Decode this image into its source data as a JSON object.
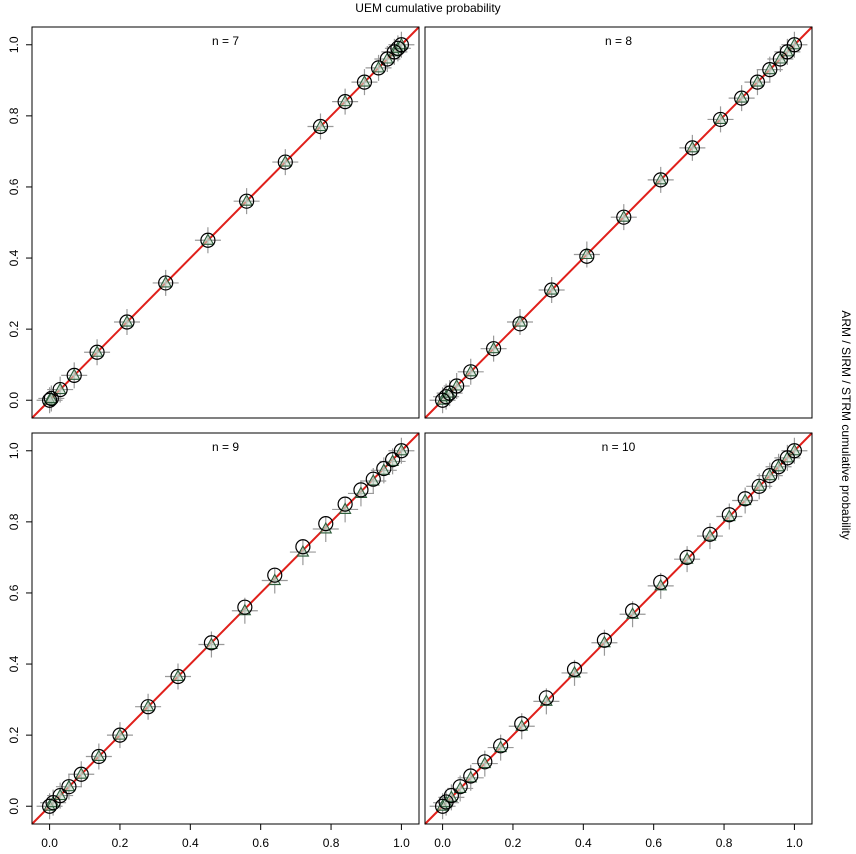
{
  "figure": {
    "xlabel": "UEM cumulative probability",
    "ylabel": "ARM / SIRM / STRM cumulative probability"
  },
  "chart_data": [
    {
      "type": "scatter",
      "title": "n = 7",
      "diagonal": true,
      "diagonal_color": "#e0201b",
      "x": [
        0,
        0.005,
        0.03,
        0.07,
        0.135,
        0.22,
        0.33,
        0.45,
        0.56,
        0.67,
        0.77,
        0.84,
        0.895,
        0.935,
        0.96,
        0.98,
        0.99,
        1
      ],
      "series": [
        {
          "marker": "cross",
          "color": "#9a9a9a",
          "values": [
            0,
            0.005,
            0.03,
            0.07,
            0.135,
            0.22,
            0.33,
            0.45,
            0.56,
            0.67,
            0.77,
            0.84,
            0.895,
            0.935,
            0.96,
            0.98,
            0.99,
            1
          ]
        },
        {
          "marker": "triangle",
          "color": "#2f5e3c",
          "values": [
            0,
            0.005,
            0.03,
            0.07,
            0.135,
            0.22,
            0.33,
            0.45,
            0.56,
            0.67,
            0.77,
            0.84,
            0.895,
            0.935,
            0.96,
            0.98,
            0.99,
            1
          ]
        },
        {
          "marker": "circle",
          "color": "#000000",
          "values": [
            0,
            0.005,
            0.03,
            0.07,
            0.135,
            0.22,
            0.33,
            0.45,
            0.56,
            0.67,
            0.77,
            0.84,
            0.895,
            0.935,
            0.96,
            0.98,
            0.99,
            1
          ]
        }
      ],
      "xlim": [
        -0.05,
        1.05
      ],
      "ylim": [
        -0.05,
        1.05
      ],
      "yticks": [
        {
          "value": 0,
          "label": "0.0"
        },
        {
          "value": 0.2,
          "label": "0.2"
        },
        {
          "value": 0.4,
          "label": "0.4"
        },
        {
          "value": 0.6,
          "label": "0.6"
        },
        {
          "value": 0.8,
          "label": "0.8"
        },
        {
          "value": 1,
          "label": "1.0"
        }
      ]
    },
    {
      "type": "scatter",
      "title": "n = 8",
      "diagonal": true,
      "diagonal_color": "#e0201b",
      "x": [
        0,
        0.01,
        0.02,
        0.04,
        0.08,
        0.145,
        0.22,
        0.31,
        0.41,
        0.515,
        0.62,
        0.71,
        0.79,
        0.85,
        0.895,
        0.93,
        0.96,
        0.98,
        1
      ],
      "series": [
        {
          "marker": "cross",
          "color": "#9a9a9a",
          "values": [
            0,
            0.01,
            0.02,
            0.04,
            0.08,
            0.145,
            0.22,
            0.31,
            0.41,
            0.515,
            0.62,
            0.71,
            0.79,
            0.85,
            0.895,
            0.93,
            0.96,
            0.98,
            1
          ]
        },
        {
          "marker": "triangle",
          "color": "#2f5e3c",
          "values": [
            0,
            0.01,
            0.02,
            0.04,
            0.08,
            0.145,
            0.22,
            0.31,
            0.41,
            0.515,
            0.62,
            0.71,
            0.79,
            0.85,
            0.895,
            0.93,
            0.96,
            0.98,
            1
          ]
        },
        {
          "marker": "circle",
          "color": "#000000",
          "values": [
            0,
            0.01,
            0.02,
            0.04,
            0.08,
            0.145,
            0.215,
            0.31,
            0.405,
            0.515,
            0.62,
            0.71,
            0.79,
            0.85,
            0.895,
            0.93,
            0.96,
            0.98,
            1
          ]
        }
      ],
      "xlim": [
        -0.05,
        1.05
      ],
      "ylim": [
        -0.05,
        1.05
      ]
    },
    {
      "type": "scatter",
      "title": "n = 9",
      "diagonal": true,
      "diagonal_color": "#e0201b",
      "x": [
        0,
        0.01,
        0.03,
        0.055,
        0.09,
        0.14,
        0.2,
        0.28,
        0.365,
        0.46,
        0.555,
        0.64,
        0.72,
        0.785,
        0.84,
        0.885,
        0.92,
        0.95,
        0.975,
        1
      ],
      "series": [
        {
          "marker": "cross",
          "color": "#9a9a9a",
          "values": [
            0,
            0.01,
            0.03,
            0.055,
            0.09,
            0.14,
            0.2,
            0.28,
            0.365,
            0.455,
            0.55,
            0.635,
            0.715,
            0.78,
            0.835,
            0.88,
            0.915,
            0.945,
            0.97,
            1
          ]
        },
        {
          "marker": "triangle",
          "color": "#2f5e3c",
          "values": [
            0,
            0.01,
            0.03,
            0.055,
            0.09,
            0.14,
            0.2,
            0.28,
            0.365,
            0.455,
            0.55,
            0.635,
            0.715,
            0.78,
            0.835,
            0.88,
            0.915,
            0.945,
            0.97,
            1
          ]
        },
        {
          "marker": "circle",
          "color": "#000000",
          "values": [
            0,
            0.01,
            0.03,
            0.055,
            0.09,
            0.14,
            0.2,
            0.28,
            0.365,
            0.46,
            0.56,
            0.65,
            0.73,
            0.795,
            0.85,
            0.89,
            0.92,
            0.95,
            0.975,
            1
          ]
        }
      ],
      "xlim": [
        -0.05,
        1.05
      ],
      "ylim": [
        -0.05,
        1.05
      ],
      "xticks": [
        {
          "value": 0,
          "label": "0.0"
        },
        {
          "value": 0.2,
          "label": "0.2"
        },
        {
          "value": 0.4,
          "label": "0.4"
        },
        {
          "value": 0.6,
          "label": "0.6"
        },
        {
          "value": 0.8,
          "label": "0.8"
        },
        {
          "value": 1,
          "label": "1.0"
        }
      ],
      "yticks": [
        {
          "value": 0,
          "label": "0.0"
        },
        {
          "value": 0.2,
          "label": "0.2"
        },
        {
          "value": 0.4,
          "label": "0.4"
        },
        {
          "value": 0.6,
          "label": "0.6"
        },
        {
          "value": 0.8,
          "label": "0.8"
        },
        {
          "value": 1,
          "label": "1.0"
        }
      ]
    },
    {
      "type": "scatter",
      "title": "n = 10",
      "diagonal": true,
      "diagonal_color": "#e0201b",
      "x": [
        0,
        0.01,
        0.025,
        0.05,
        0.08,
        0.12,
        0.165,
        0.225,
        0.295,
        0.375,
        0.46,
        0.54,
        0.62,
        0.695,
        0.76,
        0.815,
        0.86,
        0.9,
        0.93,
        0.955,
        0.98,
        1
      ],
      "series": [
        {
          "marker": "cross",
          "color": "#9a9a9a",
          "values": [
            0,
            0.01,
            0.025,
            0.05,
            0.08,
            0.12,
            0.165,
            0.225,
            0.295,
            0.375,
            0.46,
            0.54,
            0.62,
            0.695,
            0.76,
            0.815,
            0.86,
            0.9,
            0.93,
            0.955,
            0.98,
            1
          ]
        },
        {
          "marker": "triangle",
          "color": "#2f5e3c",
          "values": [
            0,
            0.01,
            0.025,
            0.05,
            0.08,
            0.12,
            0.165,
            0.225,
            0.295,
            0.375,
            0.46,
            0.54,
            0.62,
            0.695,
            0.76,
            0.815,
            0.86,
            0.9,
            0.93,
            0.955,
            0.98,
            1
          ]
        },
        {
          "marker": "circle",
          "color": "#000000",
          "values": [
            0,
            0.012,
            0.03,
            0.055,
            0.085,
            0.125,
            0.17,
            0.232,
            0.305,
            0.385,
            0.467,
            0.55,
            0.63,
            0.7,
            0.765,
            0.82,
            0.865,
            0.9,
            0.93,
            0.955,
            0.98,
            1
          ]
        }
      ],
      "xlim": [
        -0.05,
        1.05
      ],
      "ylim": [
        -0.05,
        1.05
      ],
      "xticks": [
        {
          "value": 0,
          "label": "0.0"
        },
        {
          "value": 0.2,
          "label": "0.2"
        },
        {
          "value": 0.4,
          "label": "0.4"
        },
        {
          "value": 0.6,
          "label": "0.6"
        },
        {
          "value": 0.8,
          "label": "0.8"
        },
        {
          "value": 1,
          "label": "1.0"
        }
      ]
    }
  ]
}
